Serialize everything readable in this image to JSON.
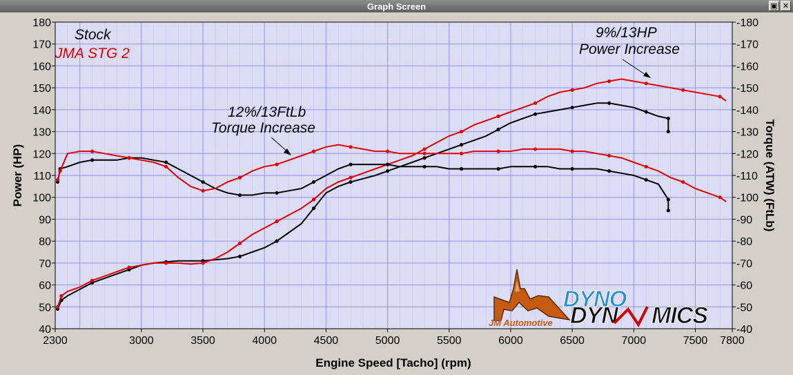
{
  "window": {
    "title": "Graph Screen"
  },
  "chart_data": {
    "type": "line",
    "title": "",
    "xlabel": "Engine Speed [Tacho] (rpm)",
    "ylabel_left": "Power (HP)",
    "ylabel_right": "Torque (ATW) (FtLb)",
    "xlim": [
      2300,
      7800
    ],
    "ylim": [
      40,
      180
    ],
    "xticks": [
      2300,
      3000,
      3500,
      4000,
      4500,
      5000,
      5500,
      6000,
      6500,
      7000,
      7500,
      7800
    ],
    "yticks": [
      40,
      50,
      60,
      70,
      80,
      90,
      100,
      110,
      120,
      130,
      140,
      150,
      160,
      170,
      180
    ],
    "grid": true,
    "legend": "top-left",
    "colors": {
      "stock": "#000000",
      "stage2": "#e00000",
      "plot_bg": "#dcdcf4",
      "grid": "#8a8aff"
    },
    "legend_entries": [
      "Stock",
      "JMA STG 2"
    ],
    "annotations": [
      {
        "text_line1": "9%/13HP",
        "text_line2": "Power Increase",
        "points_to": [
          6940,
          152
        ]
      },
      {
        "text_line1": "12%/13FtLb",
        "text_line2": "Torque Increase",
        "points_to": [
          4230,
          116
        ]
      }
    ],
    "logo": {
      "brand": "DYNO DYNAMICS",
      "company": "JM Automotive"
    },
    "series": [
      {
        "name": "Stock",
        "metric": "Power (HP)",
        "x": [
          2320,
          2350,
          2400,
          2500,
          2600,
          2700,
          2800,
          2900,
          3000,
          3100,
          3200,
          3300,
          3400,
          3500,
          3600,
          3700,
          3800,
          3900,
          4000,
          4100,
          4200,
          4300,
          4400,
          4500,
          4600,
          4700,
          4800,
          4900,
          5000,
          5100,
          5200,
          5300,
          5400,
          5500,
          5600,
          5700,
          5800,
          5900,
          6000,
          6100,
          6200,
          6300,
          6400,
          6500,
          6600,
          6700,
          6800,
          6900,
          7000,
          7100,
          7200,
          7280,
          7280
        ],
        "y": [
          49,
          53,
          55,
          58,
          61,
          63,
          65,
          67,
          69,
          70,
          70.5,
          71,
          71,
          71,
          71.5,
          72,
          73,
          75,
          77,
          80,
          84,
          88,
          95,
          102,
          105,
          107,
          108.5,
          110,
          112,
          114,
          116,
          118,
          120,
          122,
          124,
          126,
          128,
          131,
          134,
          136,
          138,
          139,
          140,
          141,
          142,
          143,
          143,
          142,
          141,
          139,
          137,
          136,
          130
        ]
      },
      {
        "name": "JMA STG 2",
        "metric": "Power (HP)",
        "x": [
          2320,
          2350,
          2400,
          2500,
          2600,
          2700,
          2800,
          2900,
          3000,
          3100,
          3200,
          3300,
          3400,
          3500,
          3600,
          3700,
          3800,
          3900,
          4000,
          4100,
          4200,
          4300,
          4400,
          4500,
          4600,
          4700,
          4800,
          4900,
          5000,
          5100,
          5200,
          5300,
          5400,
          5500,
          5600,
          5700,
          5800,
          5900,
          6000,
          6100,
          6200,
          6300,
          6400,
          6500,
          6600,
          6700,
          6800,
          6900,
          7000,
          7100,
          7200,
          7300,
          7400,
          7500,
          7600,
          7700,
          7750
        ],
        "y": [
          50,
          55,
          57,
          59,
          62,
          64,
          66,
          68,
          69,
          70,
          70,
          70,
          69.5,
          70,
          72,
          75,
          79,
          83,
          86,
          89,
          92,
          95,
          99,
          104,
          107,
          109,
          111,
          113,
          115,
          117,
          119,
          122,
          125,
          128,
          130,
          133,
          135,
          137,
          139,
          141,
          143,
          146,
          148,
          149,
          150,
          152,
          153,
          154,
          153,
          152,
          151,
          150,
          149,
          148,
          147,
          146,
          144
        ]
      },
      {
        "name": "Stock",
        "metric": "Torque (FtLb)",
        "x": [
          2320,
          2340,
          2400,
          2500,
          2600,
          2700,
          2800,
          2900,
          3000,
          3100,
          3200,
          3300,
          3400,
          3500,
          3600,
          3700,
          3800,
          3900,
          4000,
          4100,
          4200,
          4300,
          4400,
          4500,
          4600,
          4700,
          4800,
          4900,
          5000,
          5100,
          5200,
          5300,
          5400,
          5500,
          5600,
          5700,
          5800,
          5900,
          6000,
          6100,
          6200,
          6300,
          6400,
          6500,
          6600,
          6700,
          6800,
          6900,
          7000,
          7100,
          7200,
          7280,
          7280
        ],
        "y": [
          107,
          113,
          114,
          116,
          117,
          117,
          117,
          118,
          118,
          117,
          116,
          113,
          110,
          107,
          104,
          102,
          101,
          101,
          102,
          102,
          103,
          104,
          107,
          110,
          113,
          115,
          115,
          115,
          115,
          114,
          114,
          114,
          114,
          113,
          113,
          113,
          113,
          113,
          114,
          114,
          114,
          114,
          113,
          113,
          113,
          113,
          112,
          111,
          110,
          108,
          106,
          99,
          94
        ]
      },
      {
        "name": "JMA STG 2",
        "metric": "Torque (FtLb)",
        "x": [
          2320,
          2340,
          2400,
          2500,
          2600,
          2700,
          2800,
          2900,
          3000,
          3100,
          3200,
          3300,
          3400,
          3500,
          3600,
          3700,
          3800,
          3900,
          4000,
          4100,
          4200,
          4300,
          4400,
          4500,
          4600,
          4700,
          4800,
          4900,
          5000,
          5100,
          5200,
          5300,
          5400,
          5500,
          5600,
          5700,
          5800,
          5900,
          6000,
          6100,
          6200,
          6300,
          6400,
          6500,
          6600,
          6700,
          6800,
          6900,
          7000,
          7100,
          7200,
          7300,
          7400,
          7500,
          7600,
          7700,
          7750
        ],
        "y": [
          108,
          112,
          120,
          121,
          121,
          120,
          119,
          118,
          117,
          116,
          114,
          109,
          105,
          103,
          104,
          107,
          109,
          112,
          114,
          115,
          117,
          119,
          121,
          123,
          124,
          123,
          122,
          121,
          121,
          120,
          120,
          120,
          120,
          120,
          120,
          121,
          121,
          121,
          121,
          122,
          122,
          122,
          122,
          121,
          121,
          120,
          119,
          118,
          116,
          114,
          112,
          109,
          107,
          104,
          102,
          100,
          98
        ]
      }
    ]
  }
}
